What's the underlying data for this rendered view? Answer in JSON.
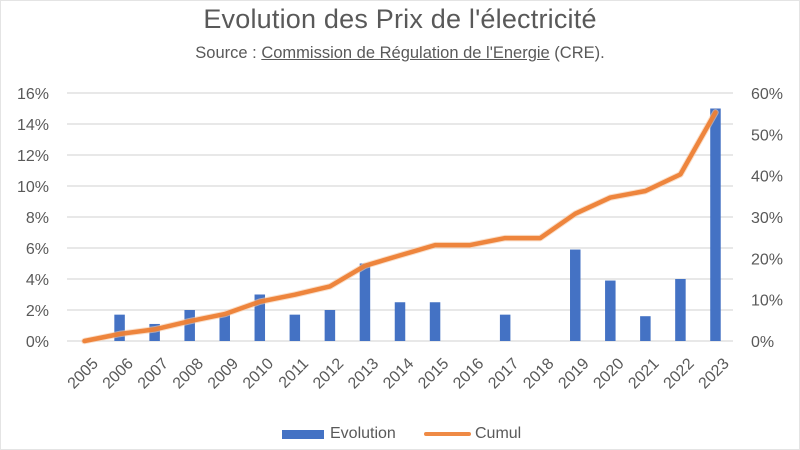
{
  "chart_data": {
    "type": "bar+line",
    "title": "Evolution des Prix de l'électricité",
    "subtitle": {
      "prefix": "Source : ",
      "link_text": "Commission de Régulation de l'Energie",
      "suffix": " (CRE)."
    },
    "categories": [
      "2005",
      "2006",
      "2007",
      "2008",
      "2009",
      "2010",
      "2011",
      "2012",
      "2013",
      "2014",
      "2015",
      "2016",
      "2017",
      "2018",
      "2019",
      "2020",
      "2021",
      "2022",
      "2023"
    ],
    "series": [
      {
        "name": "Evolution",
        "type": "bar",
        "axis": "left",
        "color": "#4472c4",
        "values": [
          0,
          1.7,
          1.1,
          2.0,
          1.7,
          3.0,
          1.7,
          2.0,
          5.0,
          2.5,
          2.5,
          0,
          1.7,
          0,
          5.9,
          3.9,
          1.6,
          4.0,
          15.0
        ]
      },
      {
        "name": "Cumul",
        "type": "line",
        "axis": "right",
        "color": "#ed7d31",
        "values": [
          0,
          1.7,
          2.8,
          4.8,
          6.5,
          9.5,
          11.2,
          13.2,
          18.2,
          20.7,
          23.2,
          23.2,
          24.9,
          24.9,
          30.8,
          34.7,
          36.3,
          40.3,
          55.3
        ]
      }
    ],
    "left_axis": {
      "ylim": [
        0,
        16
      ],
      "ticks": [
        0,
        2,
        4,
        6,
        8,
        10,
        12,
        14,
        16
      ],
      "tick_labels": [
        "0%",
        "2%",
        "4%",
        "6%",
        "8%",
        "10%",
        "12%",
        "14%",
        "16%"
      ]
    },
    "right_axis": {
      "ylim": [
        0,
        60
      ],
      "ticks": [
        0,
        10,
        20,
        30,
        40,
        50,
        60
      ],
      "tick_labels": [
        "0%",
        "10%",
        "20%",
        "30%",
        "40%",
        "50%",
        "60%"
      ]
    },
    "xlabel": "",
    "ylabel": "",
    "grid": true,
    "legend": {
      "position": "bottom",
      "entries": [
        "Evolution",
        "Cumul"
      ]
    }
  }
}
